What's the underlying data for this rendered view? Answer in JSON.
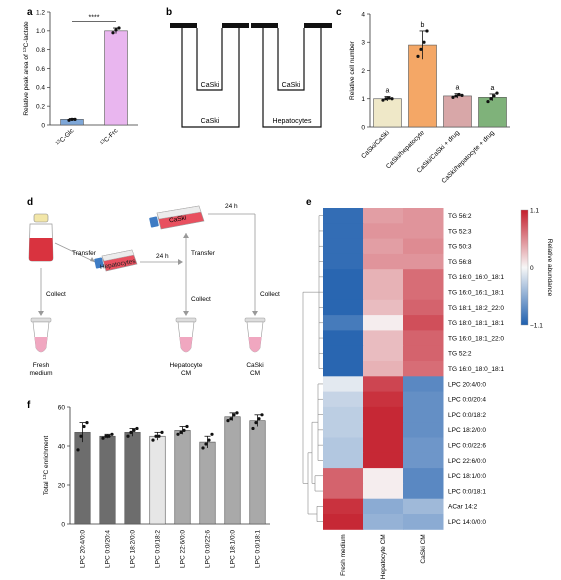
{
  "panels": {
    "a": "a",
    "b": "b",
    "c": "c",
    "d": "d",
    "e": "e",
    "f": "f"
  },
  "colors": {
    "glc": "#7ea7d8",
    "frc": "#e9b6ef",
    "c_bars": [
      "#efe8c8",
      "#f4a766",
      "#d8a7a8",
      "#7fb27a"
    ],
    "f_bars": [
      "#6d6d6d",
      "#6d6d6d",
      "#6d6d6d",
      "#e6e6e6",
      "#a9a9a9",
      "#a9a9a9",
      "#a9a9a9",
      "#a9a9a9"
    ],
    "heat_low": "#1f5fae",
    "heat_mid": "#f7f7f7",
    "heat_high": "#c41e2c"
  },
  "panel_b": {
    "left_top": "CaSki",
    "left_bottom": "CaSki",
    "right_top": "CaSki",
    "right_bottom": "Hepatocytes"
  },
  "panel_d": {
    "transfer1": "Transfer",
    "transfer2": "Transfer",
    "t24a": "24 h",
    "t24b": "24 h",
    "collect1": "Collect",
    "collect2": "Collect",
    "collect3": "Collect",
    "flask_hep": "Hepatocytes",
    "flask_caski": "CaSki",
    "tube1": "Fresh medium",
    "tube2": "Hepatocyte CM",
    "tube3": "CaSki CM"
  },
  "chart_data": [
    {
      "panel": "a",
      "type": "bar",
      "categories": [
        "13C-Glc",
        "13C-Frc"
      ],
      "values": [
        0.06,
        1.0
      ],
      "errors": [
        0.01,
        0.03
      ],
      "ylabel": "Relative peak area of 13C-lactate",
      "ylim": [
        0,
        1.2
      ],
      "yticks": [
        "0",
        "0.2",
        "0.4",
        "0.6",
        "0.8",
        "1.0",
        "1.2"
      ],
      "significance": "****",
      "points": [
        [
          0.05,
          0.06,
          0.06
        ],
        [
          0.98,
          1.01,
          1.03
        ]
      ]
    },
    {
      "panel": "c",
      "type": "bar",
      "categories": [
        "CaSki/CaSki",
        "CaSki/hepatocyte",
        "CaSki/CaSki + drug",
        "CaSki/hepatocyte + drug"
      ],
      "values": [
        1.0,
        2.9,
        1.1,
        1.05
      ],
      "errors": [
        0.08,
        0.5,
        0.08,
        0.12
      ],
      "letters": [
        "a",
        "b",
        "a",
        "a"
      ],
      "ylabel": "Relative cell number",
      "ylim": [
        0,
        4
      ],
      "yticks": [
        "0",
        "1",
        "2",
        "3",
        "4"
      ],
      "points": [
        [
          0.95,
          1.0,
          1.02,
          1.0
        ],
        [
          2.5,
          2.75,
          3.0,
          3.4
        ],
        [
          1.05,
          1.1,
          1.15,
          1.12
        ],
        [
          0.9,
          1.0,
          1.1,
          1.2
        ]
      ]
    },
    {
      "panel": "e",
      "type": "heatmap",
      "rows": [
        "TG 56:2",
        "TG 52:3",
        "TG 50:3",
        "TG 56:8",
        "TG 16:0_16:0_18:1",
        "TG 16:0_16:1_18:1",
        "TG 18:1_18:2_22:0",
        "TG 18:0_18:1_18:1",
        "TG 16:0_18:1_22:0",
        "TG 52:2",
        "TG 16:0_18:0_18:1",
        "LPC 20:4/0:0",
        "LPC 0:0/20:4",
        "LPC 0:0/18:2",
        "LPC 18:2/0:0",
        "LPC 0:0/22:6",
        "LPC 22:6/0:0",
        "LPC 18:1/0:0",
        "LPC 0:0/18:1",
        "ACar 14:2",
        "LPC 14:0/0:0"
      ],
      "columns": [
        "Fresh medium",
        "Hepatocyte CM",
        "CaSki CM"
      ],
      "values": [
        [
          -1.0,
          0.45,
          0.5
        ],
        [
          -1.0,
          0.5,
          0.5
        ],
        [
          -1.0,
          0.45,
          0.55
        ],
        [
          -1.0,
          0.5,
          0.5
        ],
        [
          -1.05,
          0.35,
          0.7
        ],
        [
          -1.05,
          0.35,
          0.7
        ],
        [
          -1.05,
          0.3,
          0.75
        ],
        [
          -0.9,
          0.05,
          0.85
        ],
        [
          -1.05,
          0.3,
          0.75
        ],
        [
          -1.05,
          0.3,
          0.75
        ],
        [
          -1.05,
          0.35,
          0.7
        ],
        [
          -0.1,
          0.9,
          -0.8
        ],
        [
          -0.25,
          1.0,
          -0.75
        ],
        [
          -0.3,
          1.05,
          -0.75
        ],
        [
          -0.3,
          1.05,
          -0.75
        ],
        [
          -0.35,
          1.05,
          -0.7
        ],
        [
          -0.35,
          1.05,
          -0.7
        ],
        [
          0.75,
          0.05,
          -0.8
        ],
        [
          0.75,
          0.05,
          -0.8
        ],
        [
          1.0,
          -0.55,
          -0.45
        ],
        [
          1.05,
          -0.5,
          -0.55
        ]
      ],
      "colorbar_label": "Relative abundance",
      "colorbar_ticks": [
        "1.1",
        "0",
        "−1.1"
      ],
      "vrange": [
        -1.1,
        1.1
      ]
    },
    {
      "panel": "f",
      "type": "bar",
      "categories": [
        "LPC 20:4/0:0",
        "LPC 0:0/20:4",
        "LPC 18:2/0:0",
        "LPC 0:0/18:2",
        "LPC 22:6/0:0",
        "LPC 0:0/22:6",
        "LPC 18:1/0:0",
        "LPC 0:0/18:1"
      ],
      "values": [
        47,
        45,
        47,
        45,
        48,
        42,
        55,
        53
      ],
      "errors": [
        5,
        1,
        2,
        2,
        2,
        3,
        2,
        3
      ],
      "ylabel": "Total 13C enrichment",
      "ylim": [
        0,
        60
      ],
      "yticks": [
        "0",
        "20",
        "40",
        "60"
      ],
      "points": [
        [
          38,
          45,
          50,
          52
        ],
        [
          44,
          45,
          45,
          46
        ],
        [
          45,
          47,
          48,
          49
        ],
        [
          43,
          45,
          45,
          47
        ],
        [
          46,
          47,
          48,
          50
        ],
        [
          39,
          41,
          43,
          46
        ],
        [
          53,
          54,
          56,
          57
        ],
        [
          49,
          52,
          54,
          56
        ]
      ]
    }
  ]
}
